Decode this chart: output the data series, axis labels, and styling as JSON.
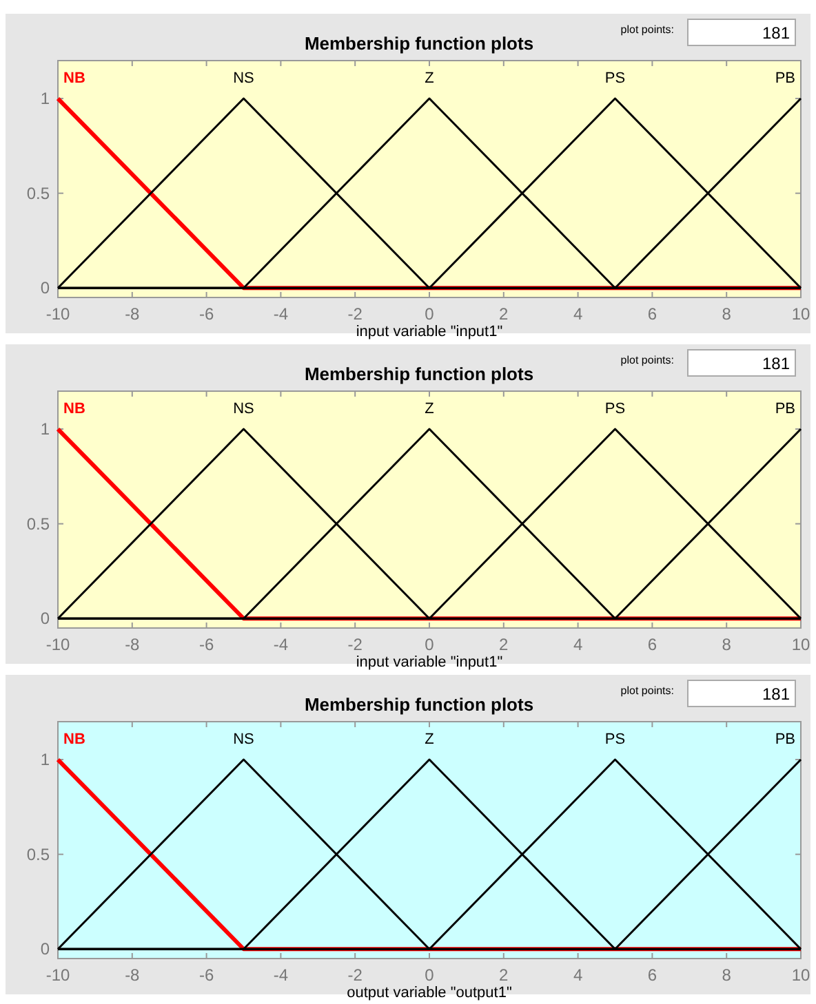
{
  "chart_data": [
    {
      "type": "line",
      "title": "Membership function plots",
      "xlabel": "input variable \"input1\"",
      "annotations": [
        "plot points:",
        "181"
      ],
      "xlim": [
        -10,
        10
      ],
      "ylim": [
        -0.05,
        1.2
      ],
      "xticks": [
        -10,
        -8,
        -6,
        -4,
        -2,
        0,
        2,
        4,
        6,
        8,
        10
      ],
      "yticks": [
        0,
        0.5,
        1
      ],
      "grid": false,
      "series": [
        {
          "name": "NB",
          "color": "#ff0000",
          "x": [
            -10,
            -5,
            10
          ],
          "values": [
            1,
            0,
            0
          ]
        },
        {
          "name": "NS",
          "color": "#000000",
          "x": [
            -10,
            -5,
            0,
            10
          ],
          "values": [
            0,
            1,
            0,
            0
          ]
        },
        {
          "name": "Z",
          "color": "#000000",
          "x": [
            -10,
            -5,
            0,
            5,
            10
          ],
          "values": [
            0,
            0,
            1,
            0,
            0
          ]
        },
        {
          "name": "PS",
          "color": "#000000",
          "x": [
            -10,
            0,
            5,
            10
          ],
          "values": [
            0,
            0,
            1,
            0
          ]
        },
        {
          "name": "PB",
          "color": "#000000",
          "x": [
            -10,
            5,
            10
          ],
          "values": [
            0,
            0,
            1
          ]
        }
      ]
    },
    {
      "type": "line",
      "title": "Membership function plots",
      "xlabel": "input variable \"input1\"",
      "annotations": [
        "plot points:",
        "181"
      ],
      "xlim": [
        -10,
        10
      ],
      "ylim": [
        -0.05,
        1.2
      ],
      "xticks": [
        -10,
        -8,
        -6,
        -4,
        -2,
        0,
        2,
        4,
        6,
        8,
        10
      ],
      "yticks": [
        0,
        0.5,
        1
      ],
      "grid": false,
      "series": [
        {
          "name": "NB",
          "color": "#ff0000",
          "x": [
            -10,
            -5,
            10
          ],
          "values": [
            1,
            0,
            0
          ]
        },
        {
          "name": "NS",
          "color": "#000000",
          "x": [
            -10,
            -5,
            0,
            10
          ],
          "values": [
            0,
            1,
            0,
            0
          ]
        },
        {
          "name": "Z",
          "color": "#000000",
          "x": [
            -10,
            -5,
            0,
            5,
            10
          ],
          "values": [
            0,
            0,
            1,
            0,
            0
          ]
        },
        {
          "name": "PS",
          "color": "#000000",
          "x": [
            -10,
            0,
            5,
            10
          ],
          "values": [
            0,
            0,
            1,
            0
          ]
        },
        {
          "name": "PB",
          "color": "#000000",
          "x": [
            -10,
            5,
            10
          ],
          "values": [
            0,
            0,
            1
          ]
        }
      ]
    },
    {
      "type": "line",
      "title": "Membership function plots",
      "xlabel": "output variable \"output1\"",
      "annotations": [
        "plot points:",
        "181"
      ],
      "xlim": [
        -10,
        10
      ],
      "ylim": [
        -0.05,
        1.2
      ],
      "xticks": [
        -10,
        -8,
        -6,
        -4,
        -2,
        0,
        2,
        4,
        6,
        8,
        10
      ],
      "yticks": [
        0,
        0.5,
        1
      ],
      "grid": false,
      "series": [
        {
          "name": "NB",
          "color": "#ff0000",
          "x": [
            -10,
            -5,
            10
          ],
          "values": [
            1,
            0,
            0
          ]
        },
        {
          "name": "NS",
          "color": "#000000",
          "x": [
            -10,
            -5,
            0,
            10
          ],
          "values": [
            0,
            1,
            0,
            0
          ]
        },
        {
          "name": "Z",
          "color": "#000000",
          "x": [
            -10,
            -5,
            0,
            5,
            10
          ],
          "values": [
            0,
            0,
            1,
            0,
            0
          ]
        },
        {
          "name": "PS",
          "color": "#000000",
          "x": [
            -10,
            0,
            5,
            10
          ],
          "values": [
            0,
            0,
            1,
            0
          ]
        },
        {
          "name": "PB",
          "color": "#000000",
          "x": [
            -10,
            5,
            10
          ],
          "values": [
            0,
            0,
            1
          ]
        }
      ]
    }
  ]
}
